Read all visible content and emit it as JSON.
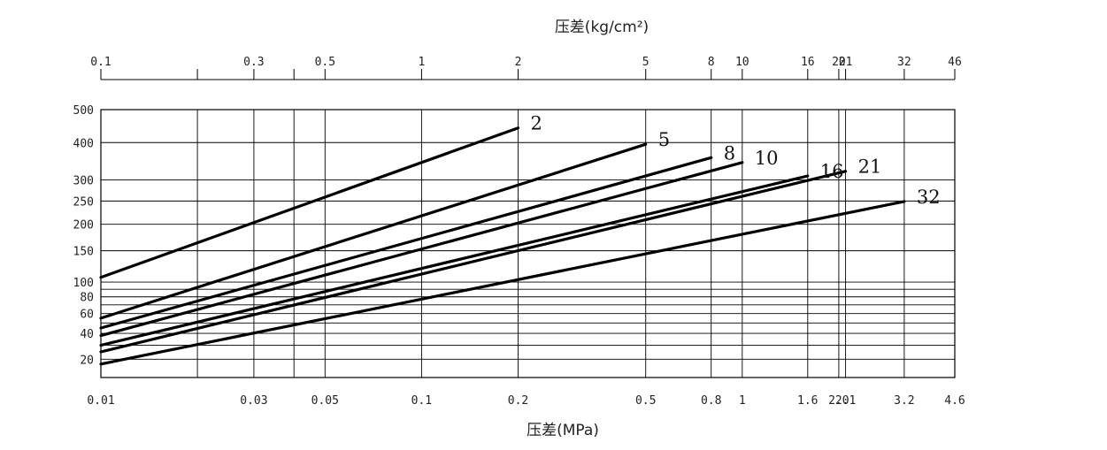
{
  "chart_data": {
    "type": "line",
    "top_axis": {
      "label": "压差(kg/cm²)",
      "scale": "log",
      "ticks": [
        "0.1",
        "0.3",
        "0.5",
        "1",
        "2",
        "5",
        "8",
        "10",
        "16",
        "20",
        "21",
        "32",
        "46"
      ],
      "tick_values": [
        0.1,
        0.3,
        0.5,
        1,
        2,
        5,
        8,
        10,
        16,
        20,
        21,
        32,
        46
      ],
      "minor_ticks": [
        0.2,
        0.4
      ]
    },
    "x_axis": {
      "label": "压差(MPa)",
      "scale": "log",
      "range": [
        0.01,
        4.6
      ],
      "ticks": [
        "0.01",
        "0.03",
        "0.05",
        "0.1",
        "0.2",
        "0.5",
        "0.8",
        "1",
        "1.6",
        "2.0",
        "2.1",
        "3.2",
        "4.6"
      ],
      "tick_values": [
        0.01,
        0.03,
        0.05,
        0.1,
        0.2,
        0.5,
        0.8,
        1,
        1.6,
        2.0,
        2.1,
        3.2,
        4.6
      ],
      "extra_gridlines": [
        0.02,
        0.04
      ]
    },
    "y_axis": {
      "label": "",
      "scale": "square-root",
      "range": [
        10,
        500
      ],
      "ticks": [
        "20",
        "40",
        "60",
        "80",
        "100",
        "150",
        "200",
        "250",
        "300",
        "400",
        "500"
      ],
      "tick_values": [
        20,
        40,
        60,
        80,
        100,
        150,
        200,
        250,
        300,
        400,
        500
      ],
      "extra_gridlines": [
        10,
        30,
        50,
        70,
        90
      ]
    },
    "grid": true,
    "legend": "inline labels at line ends",
    "series": [
      {
        "name": "2",
        "x": [
          0.01,
          0.2
        ],
        "y": [
          107,
          443
        ]
      },
      {
        "name": "5",
        "x": [
          0.01,
          0.5
        ],
        "y": [
          55,
          395
        ]
      },
      {
        "name": "8",
        "x": [
          0.01,
          0.8
        ],
        "y": [
          45,
          358
        ]
      },
      {
        "name": "10",
        "x": [
          0.01,
          1.0
        ],
        "y": [
          38,
          345
        ]
      },
      {
        "name": "16",
        "x": [
          0.01,
          1.6
        ],
        "y": [
          30,
          310
        ]
      },
      {
        "name": "21",
        "x": [
          0.01,
          2.1
        ],
        "y": [
          25,
          322
        ]
      },
      {
        "name": "32",
        "x": [
          0.01,
          3.2
        ],
        "y": [
          17,
          249
        ]
      }
    ]
  }
}
